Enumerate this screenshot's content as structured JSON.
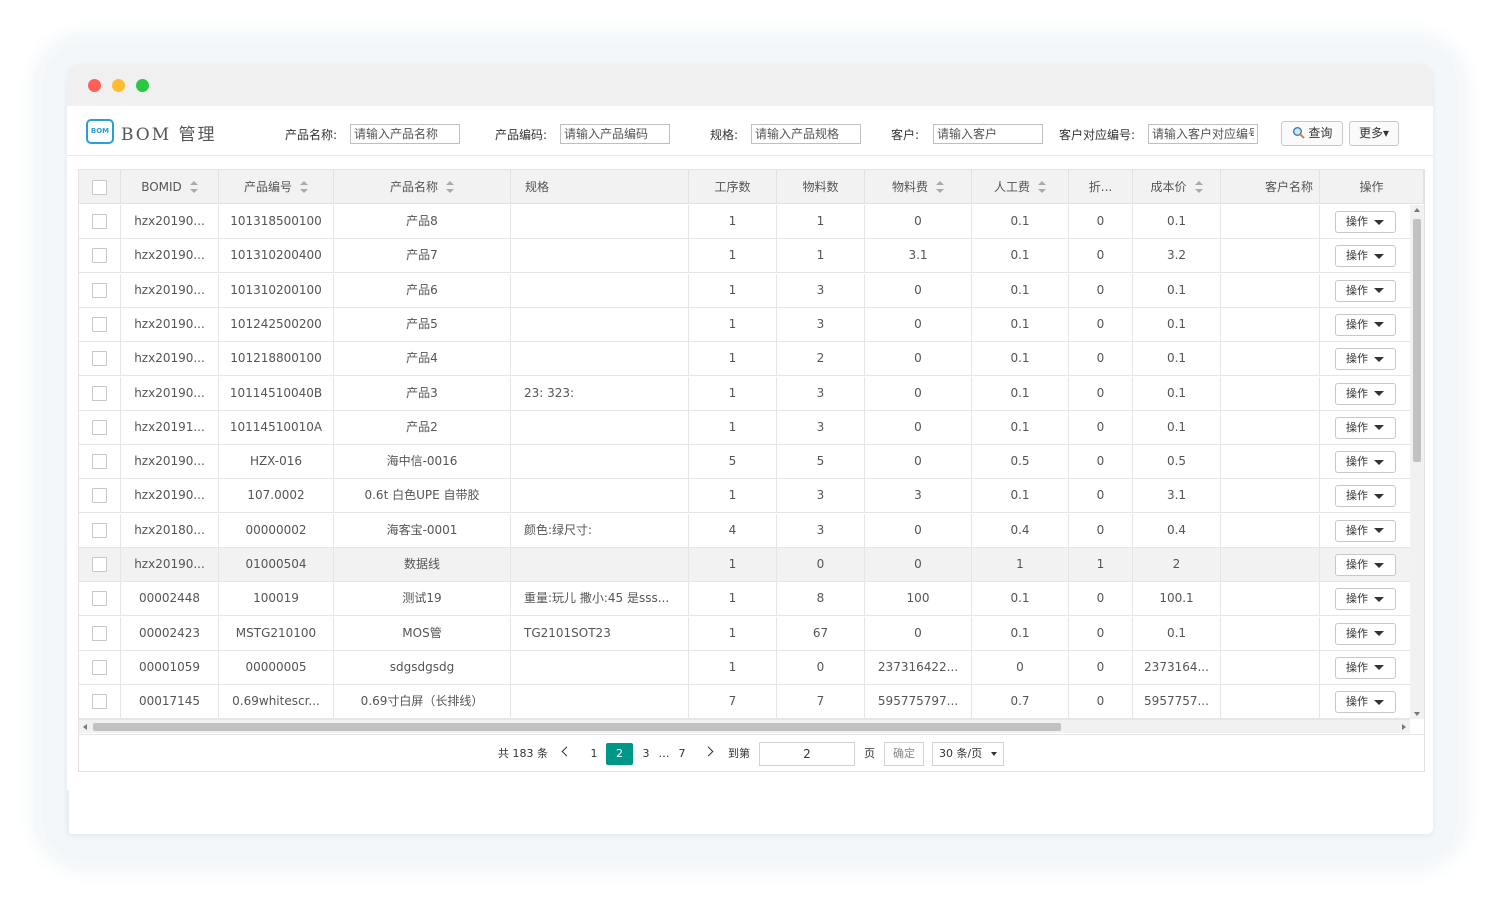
{
  "app": {
    "logo_text": "BOM",
    "title": "BOM 管理"
  },
  "filters": [
    {
      "label": "产品名称:",
      "placeholder": "请输入产品名称"
    },
    {
      "label": "产品编码:",
      "placeholder": "请输入产品编码"
    },
    {
      "label": "规格:",
      "placeholder": "请输入产品规格"
    },
    {
      "label": "客户:",
      "placeholder": "请输入客户"
    },
    {
      "label": "客户对应编号:",
      "placeholder": "请输入客户对应编号"
    }
  ],
  "toolbar": {
    "query_label": "查询",
    "more_label": "更多▾"
  },
  "table": {
    "columns": [
      "BOMID",
      "产品编号",
      "产品名称",
      "规格",
      "工序数",
      "物料数",
      "物料费",
      "人工费",
      "折...",
      "成本价",
      "客户名称",
      "操作"
    ],
    "op_label": "操作",
    "rows": [
      [
        "hzx20190...",
        "101318500100",
        "产品8",
        "",
        "1",
        "1",
        "0",
        "0.1",
        "0",
        "0.1",
        ""
      ],
      [
        "hzx20190...",
        "101310200400",
        "产品7",
        "",
        "1",
        "1",
        "3.1",
        "0.1",
        "0",
        "3.2",
        ""
      ],
      [
        "hzx20190...",
        "101310200100",
        "产品6",
        "",
        "1",
        "3",
        "0",
        "0.1",
        "0",
        "0.1",
        ""
      ],
      [
        "hzx20190...",
        "101242500200",
        "产品5",
        "",
        "1",
        "3",
        "0",
        "0.1",
        "0",
        "0.1",
        ""
      ],
      [
        "hzx20190...",
        "101218800100",
        "产品4",
        "",
        "1",
        "2",
        "0",
        "0.1",
        "0",
        "0.1",
        ""
      ],
      [
        "hzx20190...",
        "10114510040B",
        "产品3",
        "23: 323:",
        "1",
        "3",
        "0",
        "0.1",
        "0",
        "0.1",
        ""
      ],
      [
        "hzx20191...",
        "10114510010A",
        "产品2",
        "",
        "1",
        "3",
        "0",
        "0.1",
        "0",
        "0.1",
        ""
      ],
      [
        "hzx20190...",
        "HZX-016",
        "海中信-0016",
        "",
        "5",
        "5",
        "0",
        "0.5",
        "0",
        "0.5",
        ""
      ],
      [
        "hzx20190...",
        "107.0002",
        "0.6t 白色UPE 自带胶",
        "",
        "1",
        "3",
        "3",
        "0.1",
        "0",
        "3.1",
        ""
      ],
      [
        "hzx20180...",
        "00000002",
        "海客宝-0001",
        "颜色:绿尺寸:",
        "4",
        "3",
        "0",
        "0.4",
        "0",
        "0.4",
        ""
      ],
      [
        "hzx20190...",
        "01000504",
        "数据线",
        "",
        "1",
        "0",
        "0",
        "1",
        "1",
        "2",
        ""
      ],
      [
        "00002448",
        "100019",
        "测试19",
        "重量:玩儿 撒小:45 是sss...",
        "1",
        "8",
        "100",
        "0.1",
        "0",
        "100.1",
        ""
      ],
      [
        "00002423",
        "MSTG210100",
        "MOS管",
        "TG2101SOT23",
        "1",
        "67",
        "0",
        "0.1",
        "0",
        "0.1",
        ""
      ],
      [
        "00001059",
        "00000005",
        "sdgsdgsdg",
        "",
        "1",
        "0",
        "237316422...",
        "0",
        "0",
        "2373164...",
        ""
      ],
      [
        "00017145",
        "0.69whitescr...",
        "0.69寸白屏（长排线）",
        "",
        "7",
        "7",
        "595775797...",
        "0.7",
        "0",
        "5957757...",
        ""
      ]
    ],
    "highlighted_row": 10
  },
  "pagination": {
    "total": "共 183 条",
    "pages": [
      "1",
      "2",
      "3",
      "…",
      "7"
    ],
    "current": "2",
    "goto_label": "到第",
    "goto_value": "2",
    "page_unit": "页",
    "confirm_label": "确定",
    "page_size": "30 条/页"
  },
  "colors": {
    "accent": "#009688",
    "logo": "#2a9fd6"
  }
}
